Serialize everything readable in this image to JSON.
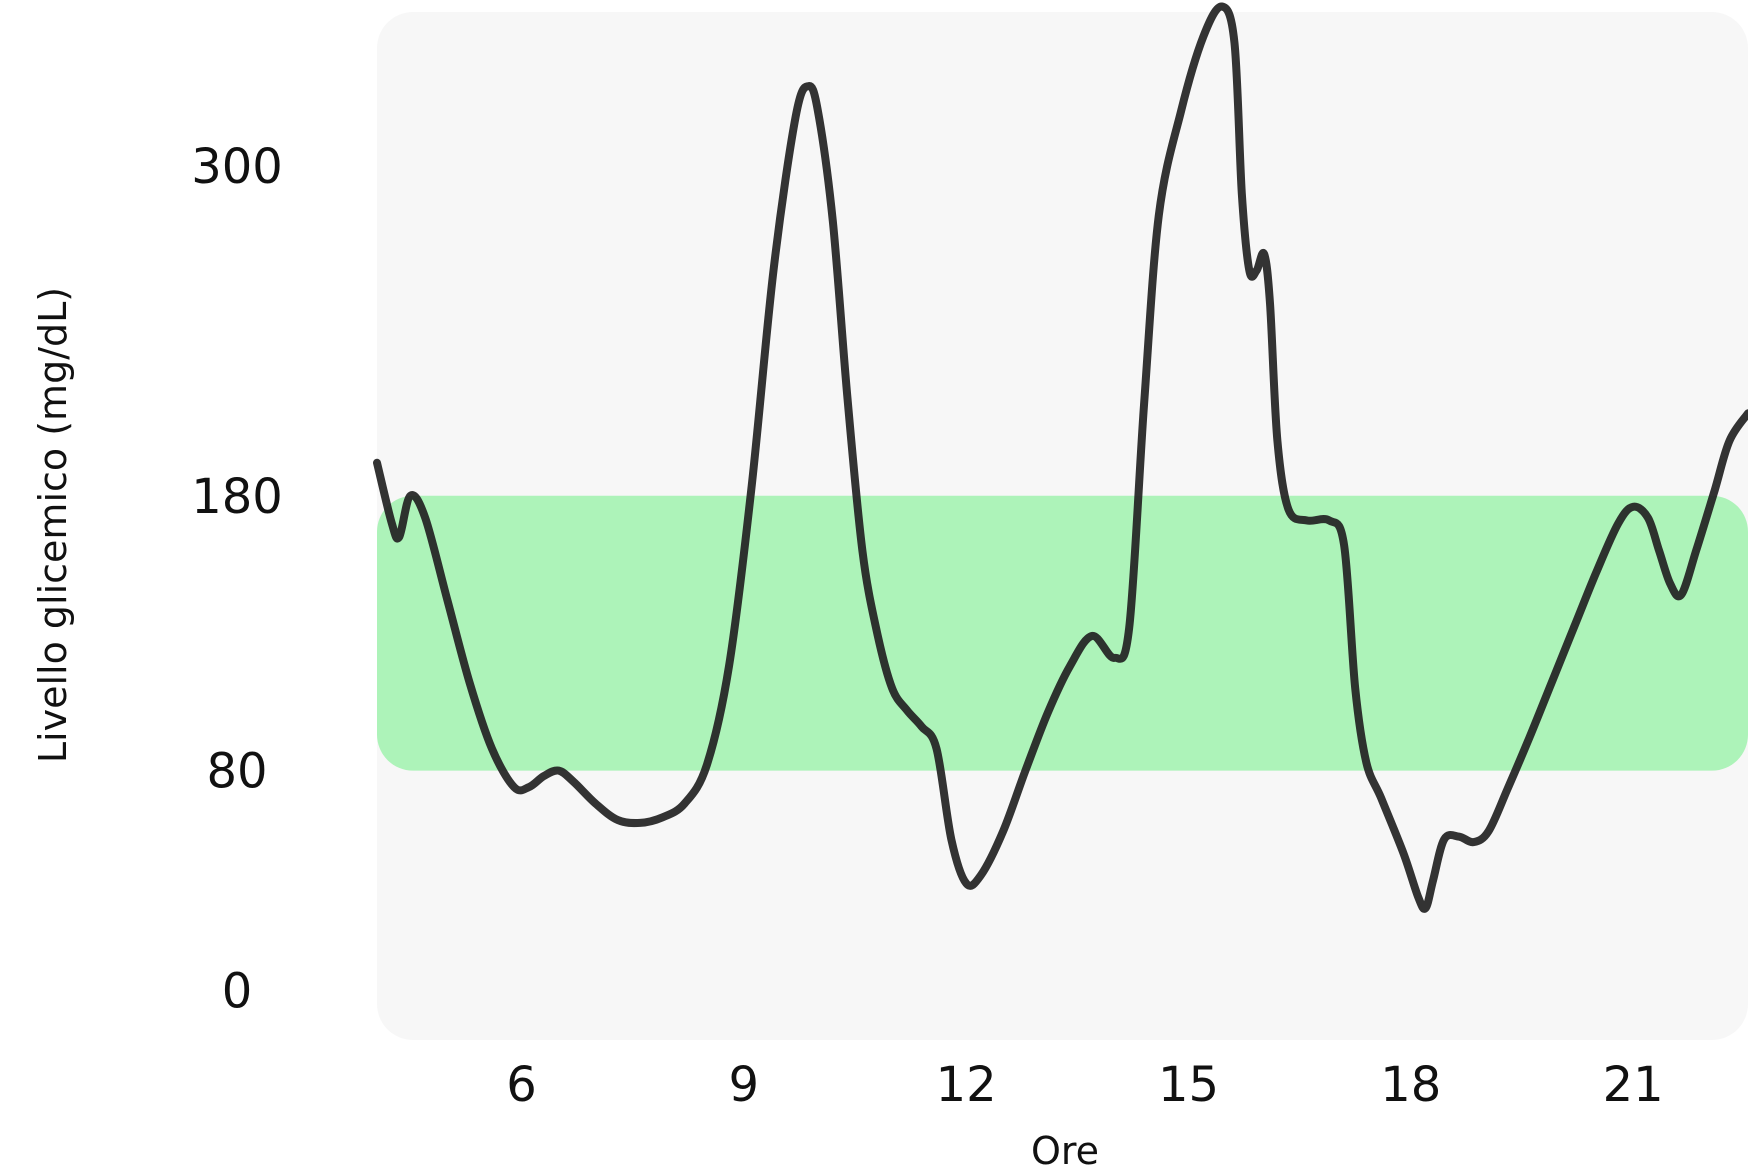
{
  "chart_data": {
    "type": "line",
    "title": "",
    "xlabel": "Ore",
    "ylabel": "Livello glicemico (mg/dL)",
    "x_ticks": [
      6,
      9,
      12,
      15,
      18,
      21
    ],
    "y_ticks": [
      0,
      80,
      180,
      300
    ],
    "xlim": [
      4.05,
      22.55
    ],
    "ylim": [
      -18,
      356
    ],
    "target_range": {
      "low": 80,
      "high": 180,
      "color": "#a6f2b3"
    },
    "grid": false,
    "legend": "none",
    "colors": {
      "line": "#222222",
      "panel": "#f7f7f7",
      "band": "#a6f2b3"
    },
    "series": [
      {
        "x": [
          4.05,
          4.25,
          4.35,
          4.5,
          4.7,
          5.0,
          5.3,
          5.6,
          5.9,
          6.1,
          6.3,
          6.5,
          6.7,
          7.0,
          7.3,
          7.6,
          7.9,
          8.2,
          8.5,
          8.8,
          9.1,
          9.4,
          9.7,
          9.87,
          10.0,
          10.2,
          10.4,
          10.6,
          10.8,
          11.0,
          11.2,
          11.4,
          11.6,
          11.8,
          12.0,
          12.2,
          12.5,
          12.8,
          13.1,
          13.4,
          13.7,
          14.0,
          14.2,
          14.4,
          14.6,
          14.9,
          15.2,
          15.45,
          15.62,
          15.72,
          15.82,
          15.92,
          16.02,
          16.1,
          16.2,
          16.35,
          16.6,
          16.9,
          17.1,
          17.25,
          17.4,
          17.6,
          17.9,
          18.1,
          18.2,
          18.3,
          18.45,
          18.65,
          18.85,
          19.05,
          19.3,
          19.6,
          19.9,
          20.2,
          20.5,
          20.8,
          21.0,
          21.2,
          21.35,
          21.5,
          21.65,
          21.85,
          22.1,
          22.3,
          22.55
        ],
        "y": [
          192,
          170,
          165,
          180,
          172,
          142,
          112,
          88,
          74,
          74,
          78,
          80,
          76,
          68,
          62,
          61,
          63,
          68,
          82,
          118,
          182,
          262,
          318,
          329,
          320,
          280,
          215,
          160,
          130,
          110,
          102,
          96,
          88,
          55,
          39,
          42,
          58,
          80,
          101,
          118,
          129,
          121,
          132,
          213,
          282,
          320,
          347,
          358,
          345,
          290,
          262,
          262,
          268,
          250,
          200,
          175,
          171,
          171,
          162,
          110,
          83,
          70,
          50,
          34,
          30,
          40,
          55,
          56,
          54,
          58,
          73,
          92,
          112,
          132,
          152,
          170,
          176,
          172,
          160,
          148,
          144,
          160,
          182,
          200,
          210
        ]
      }
    ]
  }
}
